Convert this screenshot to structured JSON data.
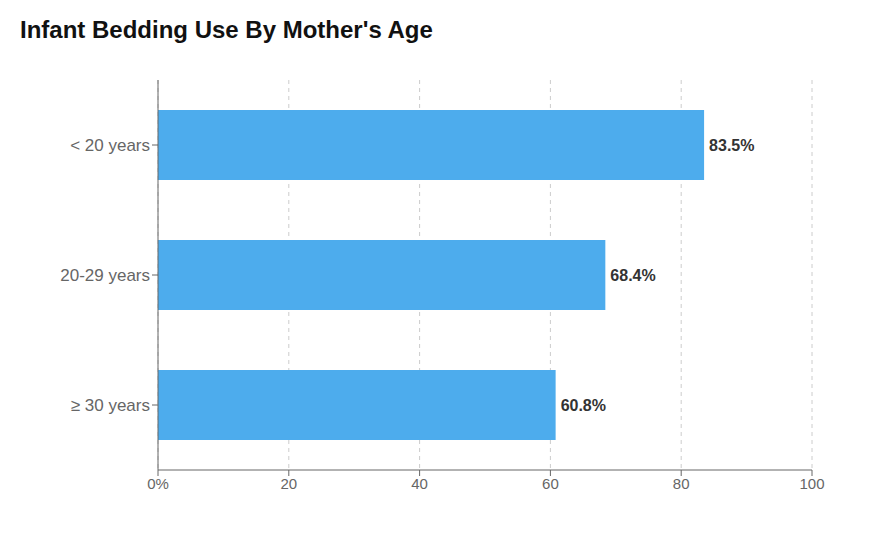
{
  "chart_data": {
    "type": "bar",
    "orientation": "horizontal",
    "title": "Infant Bedding Use By Mother's Age",
    "categories": [
      "≥ 30 years",
      "20-29 years",
      "< 20 years"
    ],
    "values": [
      60.8,
      68.4,
      83.5
    ],
    "value_labels": [
      "60.8%",
      "68.4%",
      "83.5%"
    ],
    "data_labels": true,
    "color": "#4DACED",
    "xlim": [
      0,
      100
    ],
    "xticks": [
      {
        "value": 0,
        "label": "0%"
      },
      20,
      40,
      60,
      80,
      100
    ],
    "grid": true
  }
}
